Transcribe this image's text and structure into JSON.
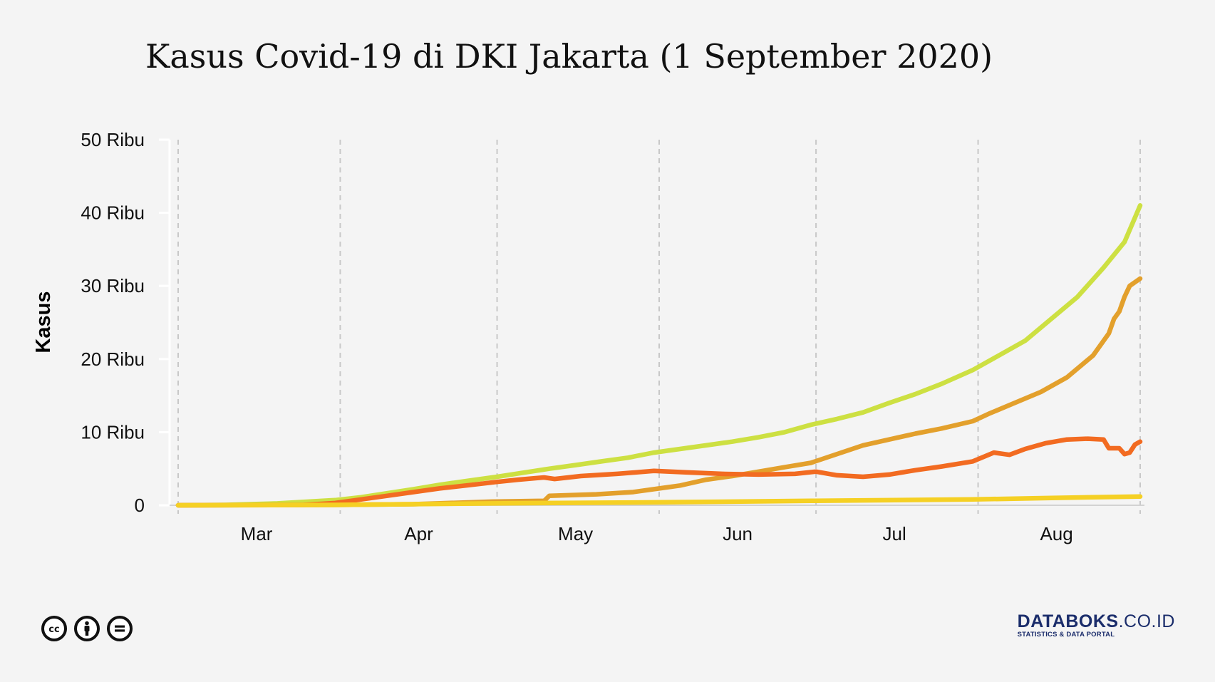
{
  "chart_data": {
    "type": "line",
    "title": "Kasus Covid-19 di DKI Jakarta (1 September 2020)",
    "ylabel": "Kasus",
    "xlabel": "",
    "ylim": [
      0,
      50000
    ],
    "yticks": [
      {
        "value": 0,
        "label": "0"
      },
      {
        "value": 10000,
        "label": "10 Ribu"
      },
      {
        "value": 20000,
        "label": "20 Ribu"
      },
      {
        "value": 30000,
        "label": "30 Ribu"
      },
      {
        "value": 40000,
        "label": "40 Ribu"
      },
      {
        "value": 50000,
        "label": "50 Ribu"
      }
    ],
    "xlim": [
      "2020-03-01",
      "2020-09-01"
    ],
    "month_labels": [
      {
        "label": "Mar",
        "date": "2020-03-16"
      },
      {
        "label": "Apr",
        "date": "2020-04-16"
      },
      {
        "label": "May",
        "date": "2020-05-16"
      },
      {
        "label": "Jun",
        "date": "2020-06-16"
      },
      {
        "label": "Jul",
        "date": "2020-07-16"
      },
      {
        "label": "Aug",
        "date": "2020-08-16"
      }
    ],
    "gridlines": [
      "2020-03-01",
      "2020-04-01",
      "2020-05-01",
      "2020-06-01",
      "2020-07-01",
      "2020-08-01",
      "2020-09-01"
    ],
    "grid": "vertical-dashed",
    "legend": "none",
    "series": [
      {
        "color": "#cde042",
        "points": [
          [
            "2020-03-01",
            0
          ],
          [
            "2020-03-10",
            50
          ],
          [
            "2020-03-20",
            250
          ],
          [
            "2020-03-31",
            700
          ],
          [
            "2020-04-05",
            1100
          ],
          [
            "2020-04-10",
            1650
          ],
          [
            "2020-04-15",
            2200
          ],
          [
            "2020-04-20",
            2800
          ],
          [
            "2020-04-25",
            3300
          ],
          [
            "2020-05-01",
            3900
          ],
          [
            "2020-05-06",
            4450
          ],
          [
            "2020-05-11",
            5000
          ],
          [
            "2020-05-16",
            5500
          ],
          [
            "2020-05-21",
            6000
          ],
          [
            "2020-05-26",
            6500
          ],
          [
            "2020-05-31",
            7200
          ],
          [
            "2020-06-05",
            7700
          ],
          [
            "2020-06-10",
            8200
          ],
          [
            "2020-06-15",
            8700
          ],
          [
            "2020-06-20",
            9300
          ],
          [
            "2020-06-25",
            10000
          ],
          [
            "2020-06-30",
            11000
          ],
          [
            "2020-07-05",
            11800
          ],
          [
            "2020-07-10",
            12700
          ],
          [
            "2020-07-15",
            14000
          ],
          [
            "2020-07-20",
            15200
          ],
          [
            "2020-07-25",
            16600
          ],
          [
            "2020-07-31",
            18500
          ],
          [
            "2020-08-05",
            20500
          ],
          [
            "2020-08-10",
            22500
          ],
          [
            "2020-08-15",
            25500
          ],
          [
            "2020-08-20",
            28500
          ],
          [
            "2020-08-25",
            32500
          ],
          [
            "2020-08-29",
            36000
          ],
          [
            "2020-09-01",
            41000
          ]
        ]
      },
      {
        "color": "#e3a02c",
        "points": [
          [
            "2020-03-01",
            0
          ],
          [
            "2020-03-31",
            50
          ],
          [
            "2020-04-15",
            150
          ],
          [
            "2020-04-30",
            500
          ],
          [
            "2020-05-10",
            600
          ],
          [
            "2020-05-11",
            1300
          ],
          [
            "2020-05-20",
            1500
          ],
          [
            "2020-05-27",
            1800
          ],
          [
            "2020-06-01",
            2300
          ],
          [
            "2020-06-05",
            2700
          ],
          [
            "2020-06-10",
            3500
          ],
          [
            "2020-06-15",
            4000
          ],
          [
            "2020-06-20",
            4600
          ],
          [
            "2020-06-25",
            5200
          ],
          [
            "2020-06-30",
            5800
          ],
          [
            "2020-07-05",
            7000
          ],
          [
            "2020-07-10",
            8200
          ],
          [
            "2020-07-15",
            9000
          ],
          [
            "2020-07-20",
            9800
          ],
          [
            "2020-07-25",
            10500
          ],
          [
            "2020-07-31",
            11500
          ],
          [
            "2020-08-03",
            12500
          ],
          [
            "2020-08-08",
            14000
          ],
          [
            "2020-08-13",
            15500
          ],
          [
            "2020-08-18",
            17500
          ],
          [
            "2020-08-23",
            20500
          ],
          [
            "2020-08-26",
            23500
          ],
          [
            "2020-08-27",
            25500
          ],
          [
            "2020-08-28",
            26500
          ],
          [
            "2020-08-29",
            28500
          ],
          [
            "2020-08-30",
            30000
          ],
          [
            "2020-09-01",
            31000
          ]
        ]
      },
      {
        "color": "#f26b21",
        "points": [
          [
            "2020-03-01",
            0
          ],
          [
            "2020-03-25",
            50
          ],
          [
            "2020-03-31",
            300
          ],
          [
            "2020-04-05",
            800
          ],
          [
            "2020-04-10",
            1300
          ],
          [
            "2020-04-15",
            1800
          ],
          [
            "2020-04-20",
            2300
          ],
          [
            "2020-04-25",
            2700
          ],
          [
            "2020-05-01",
            3200
          ],
          [
            "2020-05-05",
            3500
          ],
          [
            "2020-05-10",
            3800
          ],
          [
            "2020-05-12",
            3600
          ],
          [
            "2020-05-17",
            4000
          ],
          [
            "2020-05-24",
            4300
          ],
          [
            "2020-05-31",
            4700
          ],
          [
            "2020-06-06",
            4500
          ],
          [
            "2020-06-13",
            4300
          ],
          [
            "2020-06-20",
            4200
          ],
          [
            "2020-06-27",
            4300
          ],
          [
            "2020-07-01",
            4600
          ],
          [
            "2020-07-05",
            4100
          ],
          [
            "2020-07-10",
            3900
          ],
          [
            "2020-07-15",
            4200
          ],
          [
            "2020-07-20",
            4800
          ],
          [
            "2020-07-25",
            5300
          ],
          [
            "2020-07-31",
            6000
          ],
          [
            "2020-08-04",
            7200
          ],
          [
            "2020-08-07",
            6900
          ],
          [
            "2020-08-10",
            7700
          ],
          [
            "2020-08-14",
            8500
          ],
          [
            "2020-08-18",
            9000
          ],
          [
            "2020-08-22",
            9100
          ],
          [
            "2020-08-25",
            9000
          ],
          [
            "2020-08-26",
            7800
          ],
          [
            "2020-08-28",
            7800
          ],
          [
            "2020-08-29",
            7000
          ],
          [
            "2020-08-30",
            7200
          ],
          [
            "2020-08-31",
            8300
          ],
          [
            "2020-09-01",
            8700
          ]
        ]
      },
      {
        "color": "#f5d024",
        "points": [
          [
            "2020-03-01",
            0
          ],
          [
            "2020-03-31",
            50
          ],
          [
            "2020-04-30",
            250
          ],
          [
            "2020-05-31",
            400
          ],
          [
            "2020-06-30",
            600
          ],
          [
            "2020-07-31",
            800
          ],
          [
            "2020-08-15",
            1000
          ],
          [
            "2020-09-01",
            1200
          ]
        ]
      }
    ]
  },
  "footer": {
    "license_icons": [
      "cc-icon",
      "by-icon",
      "nd-icon"
    ],
    "brand_main_bold": "DATABOKS",
    "brand_main_rest": ".CO.ID",
    "brand_sub": "STATISTICS & DATA PORTAL"
  }
}
